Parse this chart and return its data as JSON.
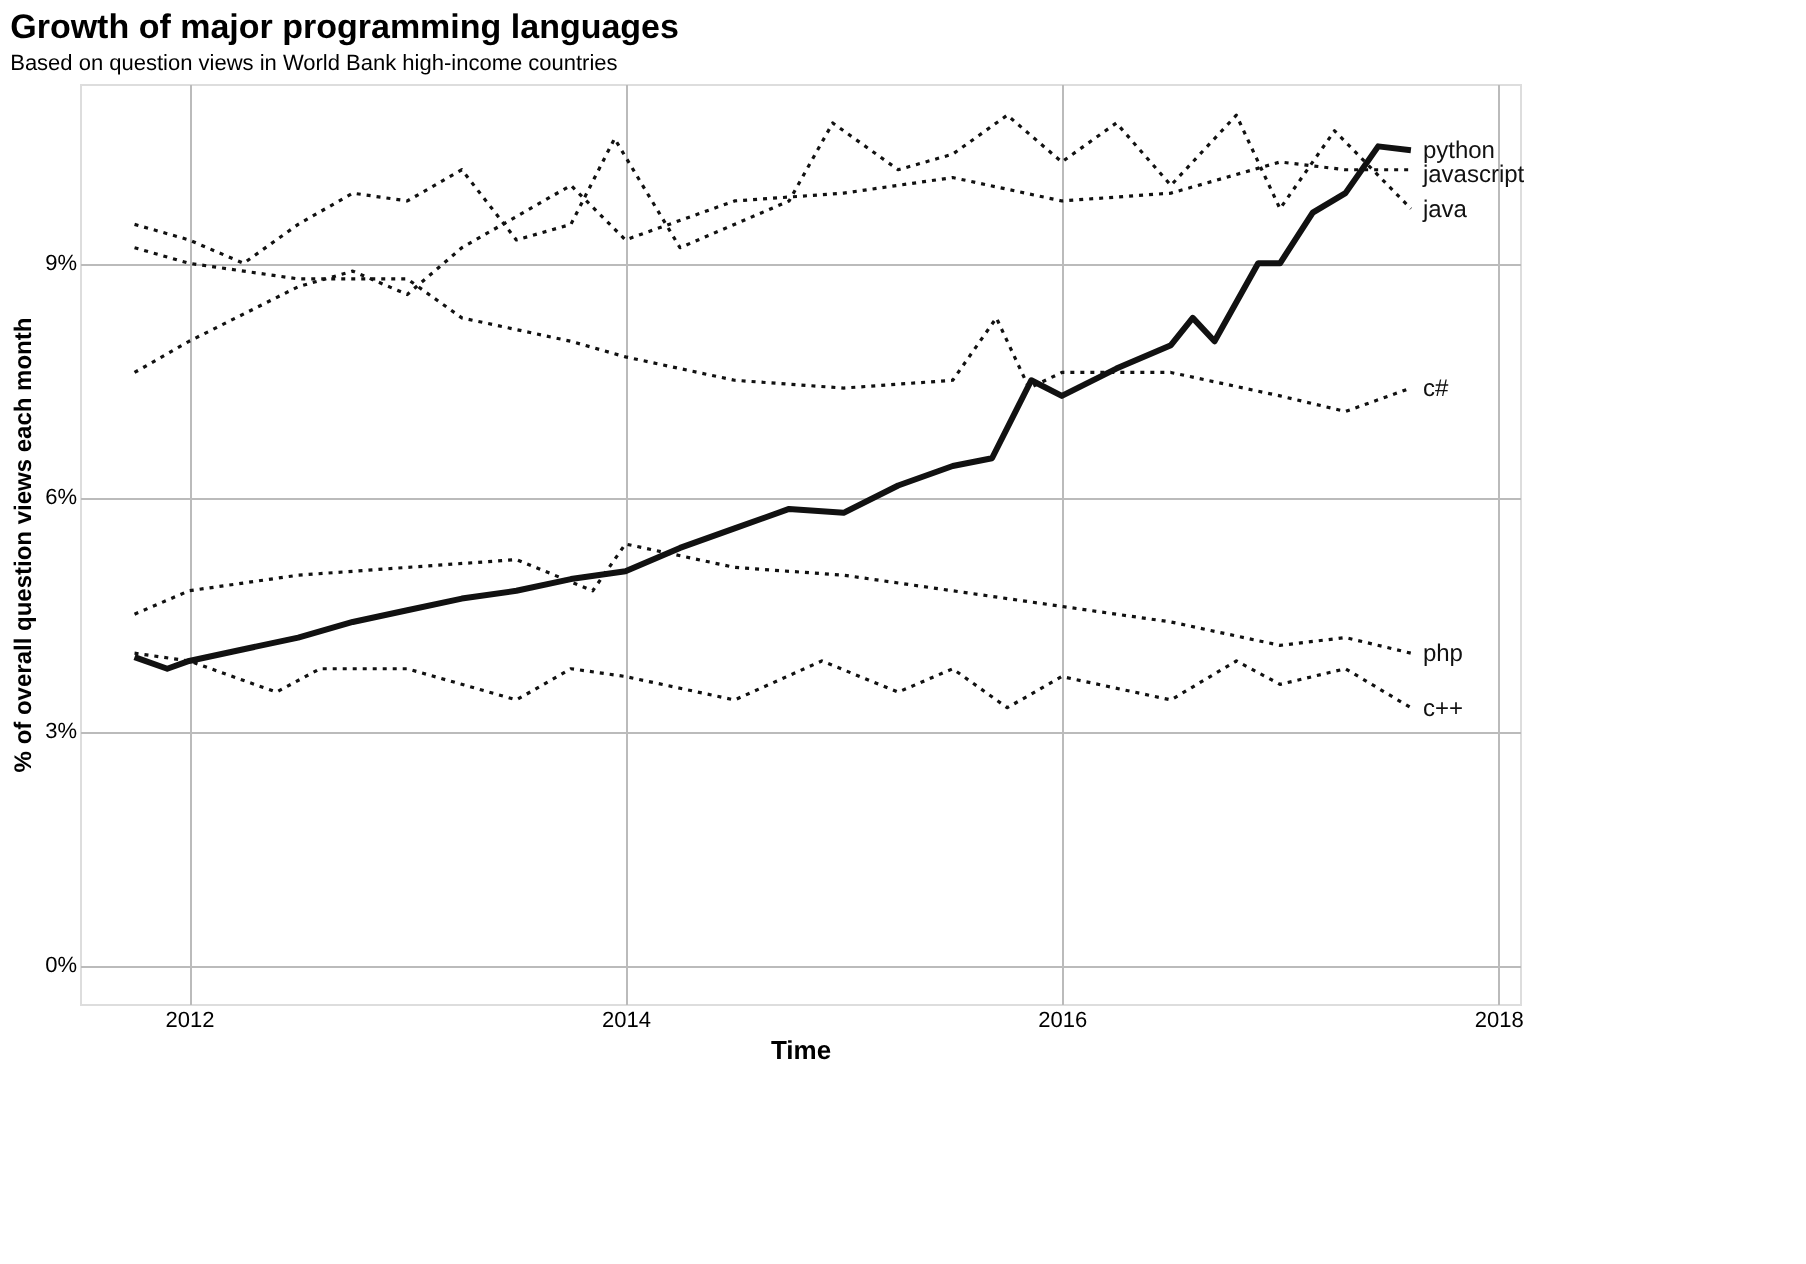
{
  "chart_data": {
    "type": "line",
    "title": "Growth of major programming languages",
    "subtitle": "Based on question views in World Bank high-income countries",
    "xlabel": "Time",
    "ylabel": "% of overall question views each month",
    "xlim": [
      2011.5,
      2018.1
    ],
    "xticks": [
      2012,
      2014,
      2016,
      2018
    ],
    "ylim": [
      -0.5,
      11.3
    ],
    "yticks": [
      {
        "value": 0,
        "label": "0%"
      },
      {
        "value": 3,
        "label": "3%"
      },
      {
        "value": 6,
        "label": "6%"
      },
      {
        "value": 9,
        "label": "9%"
      }
    ],
    "grid": true,
    "series": [
      {
        "name": "python",
        "color": "#111111",
        "line_style": "solid",
        "x": [
          2011.75,
          2011.9,
          2012.0,
          2012.25,
          2012.5,
          2012.75,
          2013.0,
          2013.25,
          2013.5,
          2013.75,
          2014.0,
          2014.25,
          2014.5,
          2014.75,
          2015.0,
          2015.25,
          2015.5,
          2015.68,
          2015.86,
          2016.0,
          2016.25,
          2016.5,
          2016.6,
          2016.7,
          2016.9,
          2017.0,
          2017.15,
          2017.3,
          2017.45,
          2017.6
        ],
        "values": [
          3.95,
          3.8,
          3.9,
          4.05,
          4.2,
          4.4,
          4.55,
          4.7,
          4.8,
          4.95,
          5.05,
          5.35,
          5.6,
          5.85,
          5.8,
          6.15,
          6.4,
          6.5,
          7.5,
          7.3,
          7.65,
          7.95,
          8.3,
          8.0,
          9.0,
          9.0,
          9.65,
          9.9,
          10.5,
          10.45
        ]
      },
      {
        "name": "javascript",
        "color": "#111111",
        "line_style": "dotted",
        "x": [
          2011.75,
          2012.0,
          2012.5,
          2012.75,
          2013.0,
          2013.25,
          2013.75,
          2014.0,
          2014.5,
          2015.0,
          2015.5,
          2016.0,
          2016.5,
          2017.0,
          2017.3,
          2017.6
        ],
        "values": [
          7.6,
          8.0,
          8.7,
          8.9,
          8.6,
          9.2,
          10.0,
          9.3,
          9.8,
          9.9,
          10.1,
          9.8,
          9.9,
          10.3,
          10.2,
          10.2
        ]
      },
      {
        "name": "java",
        "color": "#111111",
        "line_style": "dotted",
        "x": [
          2011.75,
          2012.0,
          2012.25,
          2012.5,
          2012.75,
          2013.0,
          2013.25,
          2013.5,
          2013.75,
          2013.95,
          2014.25,
          2014.75,
          2014.95,
          2015.25,
          2015.5,
          2015.75,
          2016.0,
          2016.25,
          2016.5,
          2016.8,
          2017.0,
          2017.25,
          2017.6
        ],
        "values": [
          9.5,
          9.3,
          9.0,
          9.5,
          9.9,
          9.8,
          10.2,
          9.3,
          9.5,
          10.6,
          9.2,
          9.8,
          10.8,
          10.2,
          10.4,
          10.9,
          10.3,
          10.8,
          10.0,
          10.9,
          9.7,
          10.7,
          9.7
        ]
      },
      {
        "name": "c#",
        "color": "#111111",
        "line_style": "dotted",
        "x": [
          2011.75,
          2012.0,
          2012.5,
          2013.0,
          2013.25,
          2013.75,
          2014.0,
          2014.5,
          2015.0,
          2015.5,
          2015.7,
          2015.85,
          2016.0,
          2016.5,
          2017.0,
          2017.3,
          2017.6
        ],
        "values": [
          9.2,
          9.0,
          8.8,
          8.8,
          8.3,
          8.0,
          7.8,
          7.5,
          7.4,
          7.5,
          8.3,
          7.4,
          7.6,
          7.6,
          7.3,
          7.1,
          7.4
        ]
      },
      {
        "name": "php",
        "color": "#111111",
        "line_style": "dotted",
        "x": [
          2011.75,
          2012.0,
          2012.5,
          2013.0,
          2013.5,
          2013.85,
          2014.0,
          2014.5,
          2015.0,
          2015.5,
          2016.0,
          2016.5,
          2017.0,
          2017.3,
          2017.6
        ],
        "values": [
          4.5,
          4.8,
          5.0,
          5.1,
          5.2,
          4.8,
          5.4,
          5.1,
          5.0,
          4.8,
          4.6,
          4.4,
          4.1,
          4.2,
          4.0
        ]
      },
      {
        "name": "c++",
        "color": "#111111",
        "line_style": "dotted",
        "x": [
          2011.75,
          2012.0,
          2012.4,
          2012.6,
          2013.0,
          2013.5,
          2013.75,
          2014.0,
          2014.5,
          2014.9,
          2015.25,
          2015.5,
          2015.75,
          2016.0,
          2016.5,
          2016.8,
          2017.0,
          2017.3,
          2017.6
        ],
        "values": [
          4.0,
          3.9,
          3.5,
          3.8,
          3.8,
          3.4,
          3.8,
          3.7,
          3.4,
          3.9,
          3.5,
          3.8,
          3.3,
          3.7,
          3.4,
          3.9,
          3.6,
          3.8,
          3.3
        ]
      }
    ]
  }
}
